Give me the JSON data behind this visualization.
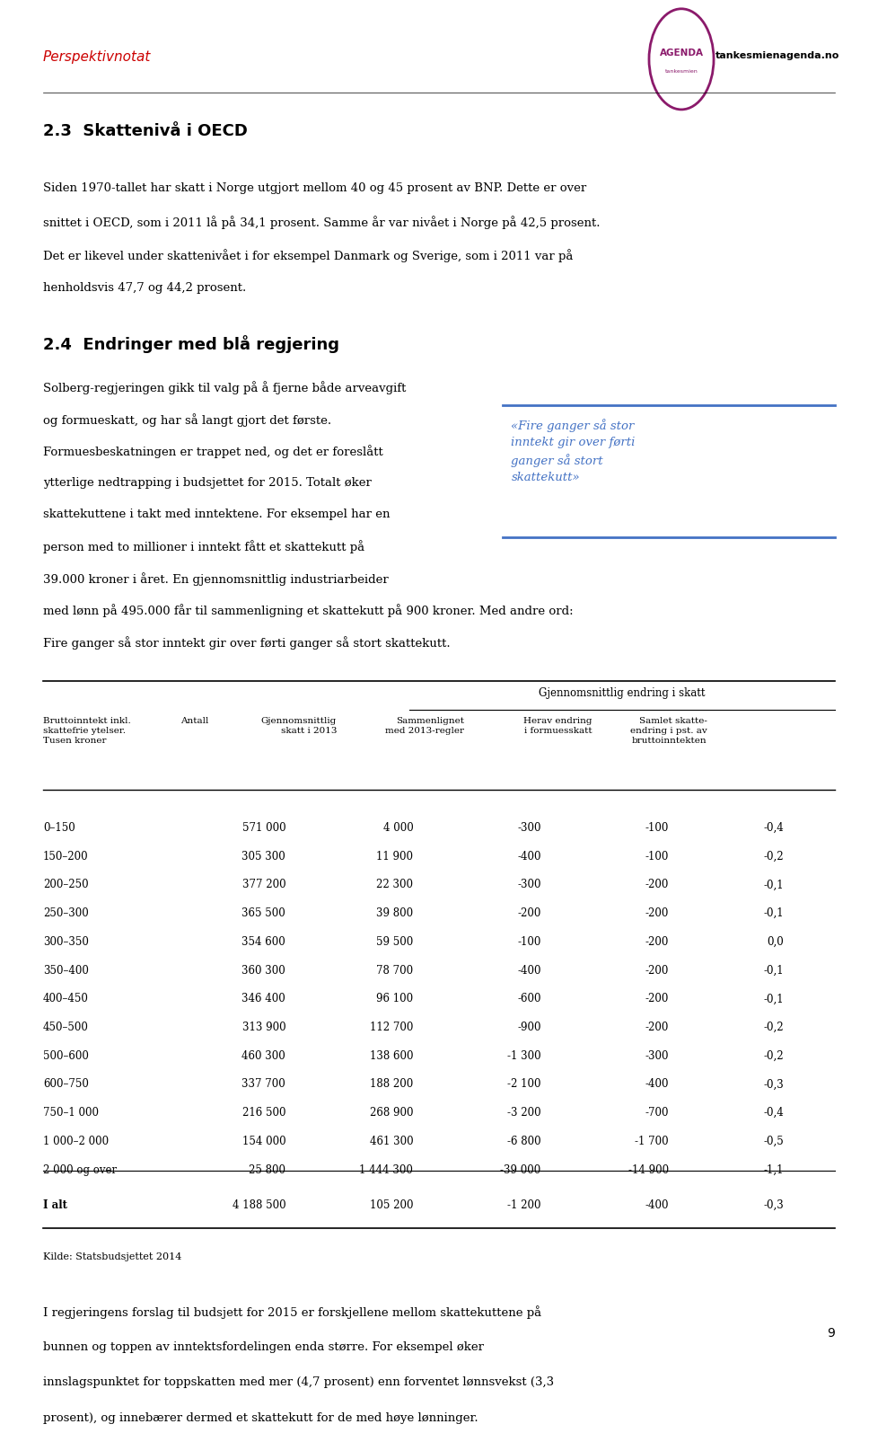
{
  "page_width": 9.6,
  "page_height": 15.59,
  "bg_color": "#ffffff",
  "header_text": "Perspektivnotat",
  "header_color": "#cc0000",
  "logo_text": "AGENDA",
  "logo_subtext": "tankesmienagenda.no",
  "logo_circle_color": "#8b1a6b",
  "section_title1": "2.3  Skattenivå i OECD",
  "para1": "Siden 1970-tallet har skatt i Norge utgjort mellom 40 og 45 prosent av BNP. Dette er over\nsnittet i OECD, som i 2011 lå på 34,1 prosent. Samme år var nivået i Norge på 42,5 prosent.\nDet er likevel under skattenivået i for eksempel Danmark og Sverige, som i 2011 var på\nhenholdsvis 47,7 og 44,2 prosent.",
  "section_title2": "2.4  Endringer med blå regjering",
  "para2_left": "Solberg-regjeringen gikk til valg på å fjerne både arveavgift\nog formueskatt, og har så langt gjort det første.\nFormuesbeskatningen er trappet ned, og det er foreslått\nytterlige nedtrapping i budsjettet for 2015. Totalt øker\nskattekuttene i takt med inntektene. For eksempel har en\nperson med to millioner i inntekt fått et skattekutt på\n39.000 kroner i året. En gjennomsnittlig industriarbeider\nmed lønn på 495.000 får til sammenligning et skattekutt på 900 kroner. Med andre ord:\nFire ganger så stor inntekt gir over førti ganger så stort skattekutt.",
  "pullquote": "«Fire ganger så stor\ninntekt gir over førti\nganger så stort\nskattekutt»",
  "pullquote_color": "#4472c4",
  "pullquote_line_color": "#4472c4",
  "table_title": "Gjennomsnittlig endring i skatt",
  "col_headers": [
    "Bruttoinntekt inkl.\nskattefrie ytelser.\nTusen kroner",
    "Antall",
    "Gjennomsnittlig\nskatt i 2013",
    "Sammenlignet\nmed 2013-regler",
    "Herav endring\ni formuesskatt",
    "Samlet skatte-\nendring i pst. av\nbruttoinntekten"
  ],
  "table_rows": [
    [
      "0–150",
      "571 000",
      "4 000",
      "-300",
      "-100",
      "-0,4"
    ],
    [
      "150–200",
      "305 300",
      "11 900",
      "-400",
      "-100",
      "-0,2"
    ],
    [
      "200–250",
      "377 200",
      "22 300",
      "-300",
      "-200",
      "-0,1"
    ],
    [
      "250–300",
      "365 500",
      "39 800",
      "-200",
      "-200",
      "-0,1"
    ],
    [
      "300–350",
      "354 600",
      "59 500",
      "-100",
      "-200",
      "0,0"
    ],
    [
      "350–400",
      "360 300",
      "78 700",
      "-400",
      "-200",
      "-0,1"
    ],
    [
      "400–450",
      "346 400",
      "96 100",
      "-600",
      "-200",
      "-0,1"
    ],
    [
      "450–500",
      "313 900",
      "112 700",
      "-900",
      "-200",
      "-0,2"
    ],
    [
      "500–600",
      "460 300",
      "138 600",
      "-1 300",
      "-300",
      "-0,2"
    ],
    [
      "600–750",
      "337 700",
      "188 200",
      "-2 100",
      "-400",
      "-0,3"
    ],
    [
      "750–1 000",
      "216 500",
      "268 900",
      "-3 200",
      "-700",
      "-0,4"
    ],
    [
      "1 000–2 000",
      "154 000",
      "461 300",
      "-6 800",
      "-1 700",
      "-0,5"
    ],
    [
      "2 000 og over",
      "25 800",
      "1 444 300",
      "-39 000",
      "-14 900",
      "-1,1"
    ]
  ],
  "table_total": [
    "I alt",
    "4 188 500",
    "105 200",
    "-1 200",
    "-400",
    "-0,3"
  ],
  "source_text": "Kilde: Statsbudsjettet 2014",
  "para_final": "I regjeringens forslag til budsjett for 2015 er forskjellene mellom skattekuttene på\nbunnen og toppen av inntektsfordelingen enda større. For eksempel øker\ninnslagspunktet for toppskatten med mer (4,7 prosent) enn forventet lønnsvekst (3,3\nprosent), og innebærer dermed et skattekutt for de med høye lønninger.",
  "page_number": "9"
}
